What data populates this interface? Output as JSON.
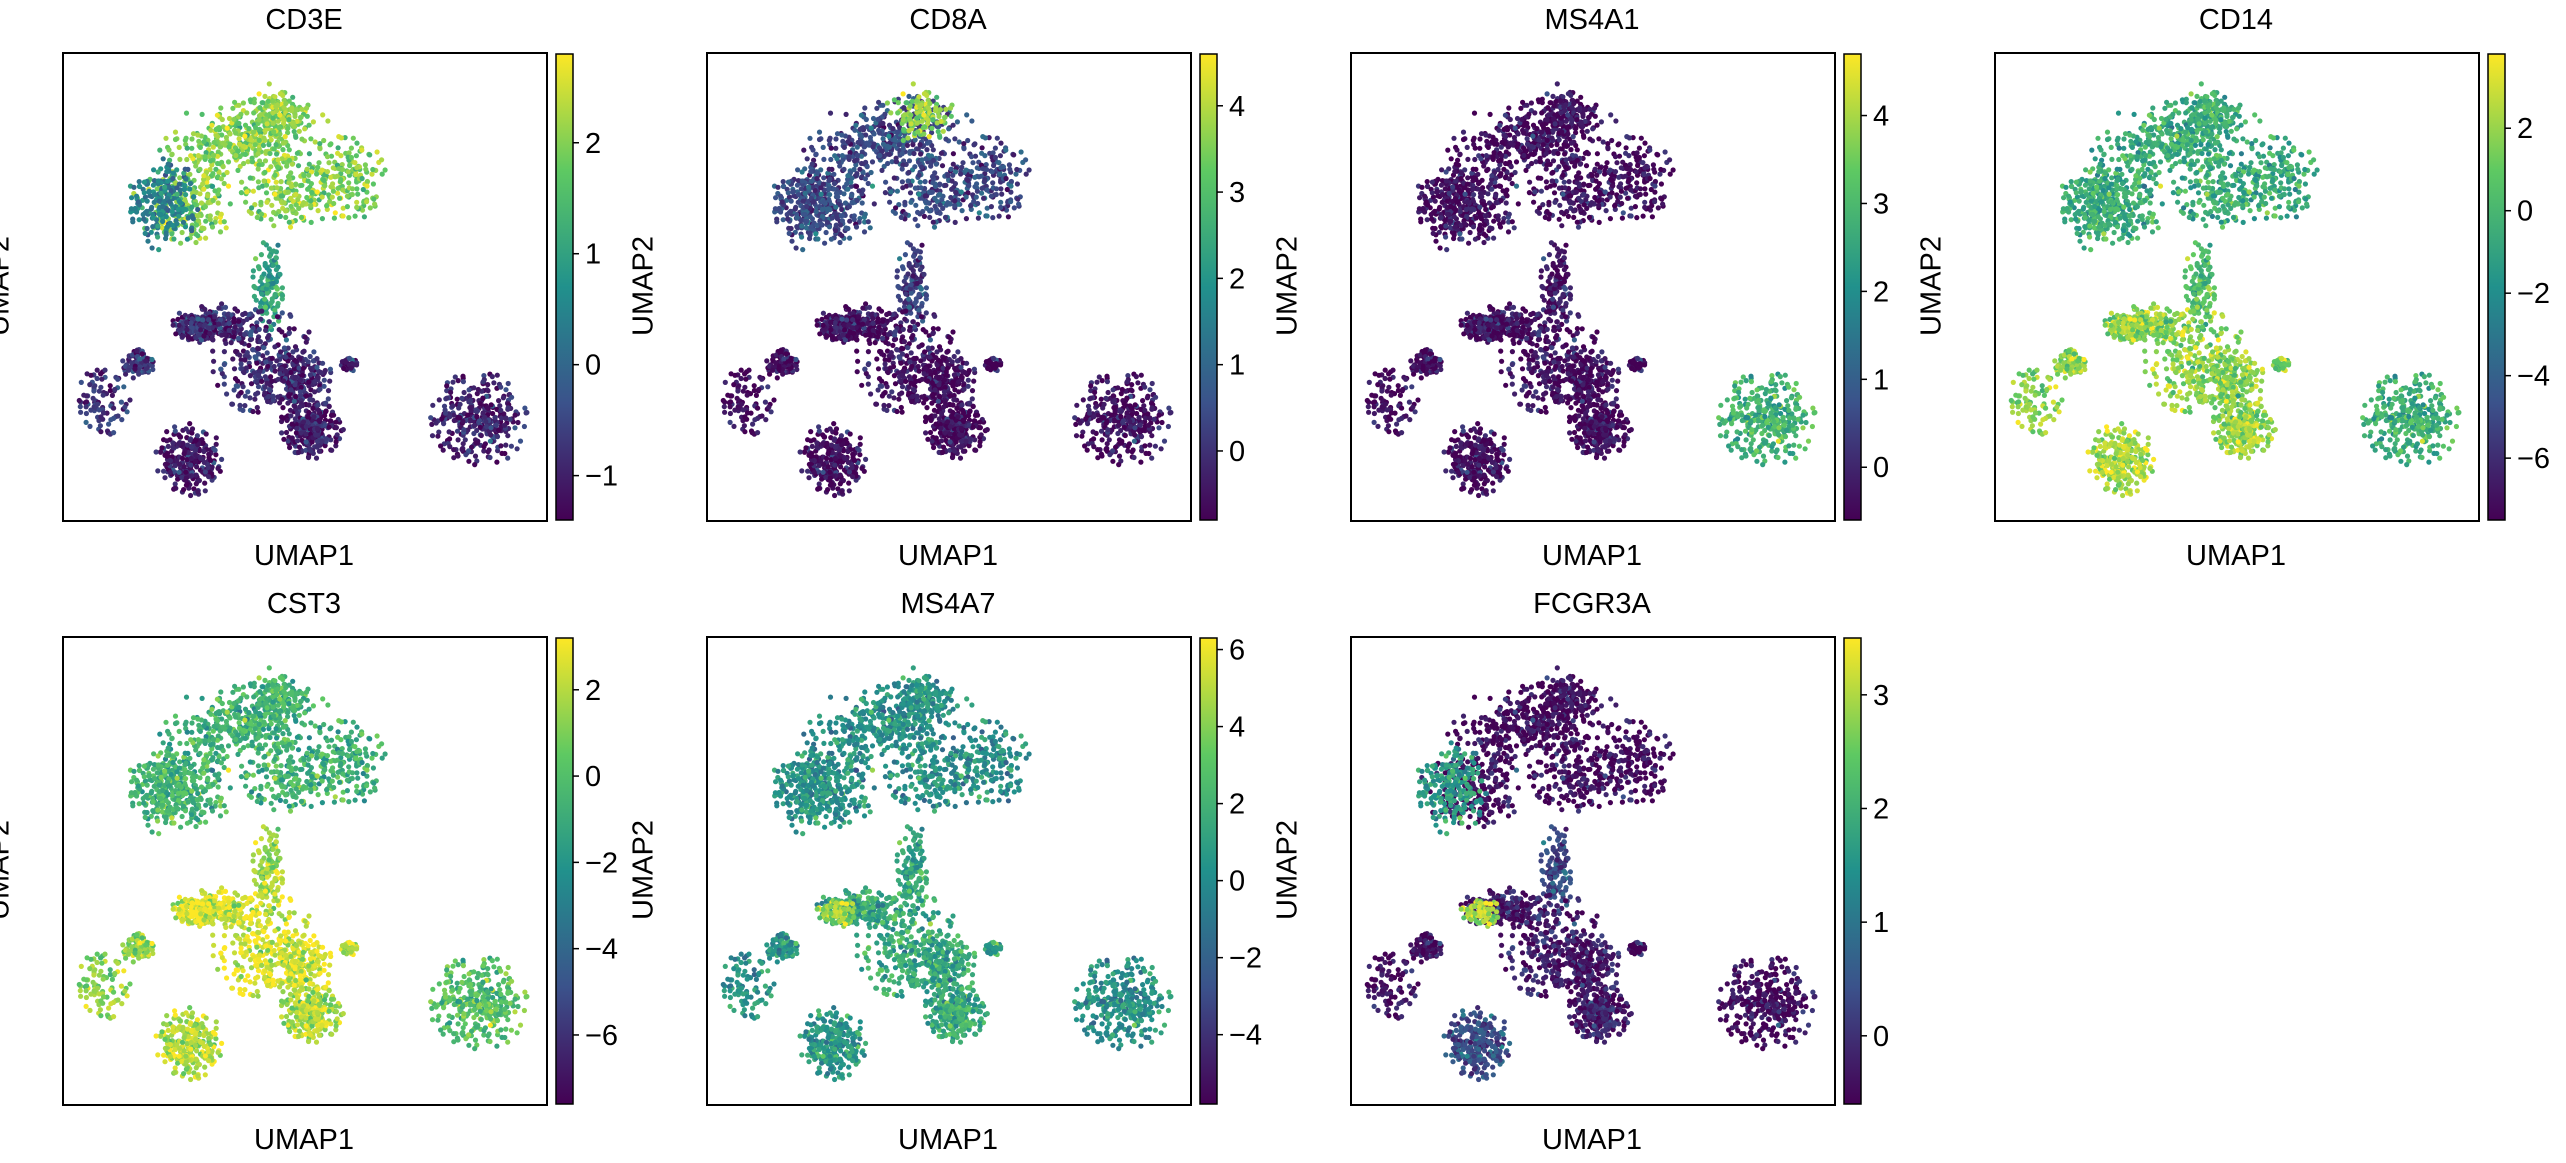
{
  "figure": {
    "colormap": "viridis",
    "colors": [
      "#440154",
      "#3b528b",
      "#21918c",
      "#5ec962",
      "#fde725"
    ]
  },
  "chart_data": [
    {
      "type": "scatter",
      "title": "CD3E",
      "xlabel": "UMAP1",
      "ylabel": "UMAP2",
      "colorbar": {
        "min": -1.4,
        "max": 2.8,
        "ticks": [
          -1,
          0,
          1,
          2
        ]
      },
      "cluster_means": {
        "tcell_top": 2.0,
        "tcell_left": 0.4,
        "bridge": 1.0,
        "mono_center": -0.9,
        "left_small": -0.7,
        "bottom_left": -1.1,
        "bottom_mid": -1.0,
        "b_cells": -1.0,
        "dots": -0.9
      }
    },
    {
      "type": "scatter",
      "title": "CD8A",
      "xlabel": "UMAP1",
      "ylabel": "UMAP2",
      "colorbar": {
        "min": -0.8,
        "max": 4.6,
        "ticks": [
          0,
          1,
          2,
          3,
          4
        ]
      },
      "cluster_means": {
        "tcell_top": 0.4,
        "tcell_top_cd8": 3.6,
        "tcell_left": 0.4,
        "bridge": 0.2,
        "mono_center": -0.6,
        "left_small": -0.6,
        "bottom_left": -0.6,
        "bottom_mid": -0.6,
        "b_cells": -0.6,
        "dots": -0.6
      }
    },
    {
      "type": "scatter",
      "title": "MS4A1",
      "xlabel": "UMAP1",
      "ylabel": "UMAP2",
      "colorbar": {
        "min": -0.6,
        "max": 4.7,
        "ticks": [
          0,
          1,
          2,
          3,
          4
        ]
      },
      "cluster_means": {
        "tcell_top": -0.4,
        "tcell_left": -0.4,
        "bridge": -0.3,
        "mono_center": -0.4,
        "left_small": -0.4,
        "bottom_left": -0.4,
        "bottom_mid": -0.4,
        "b_cells": 2.8,
        "dots": -0.4
      }
    },
    {
      "type": "scatter",
      "title": "CD14",
      "xlabel": "UMAP1",
      "ylabel": "UMAP2",
      "colorbar": {
        "min": -7.5,
        "max": 3.8,
        "ticks": [
          -6,
          -4,
          -2,
          0,
          2
        ]
      },
      "cluster_means": {
        "tcell_top": -0.5,
        "tcell_left": -0.6,
        "bridge": 0.3,
        "mono_center": 1.8,
        "left_small": 1.9,
        "bottom_left": 2.4,
        "bottom_mid": 2.2,
        "b_cells": -0.4,
        "dots": 1.5
      }
    },
    {
      "type": "scatter",
      "title": "CST3",
      "xlabel": "UMAP1",
      "ylabel": "UMAP2",
      "colorbar": {
        "min": -7.6,
        "max": 3.2,
        "ticks": [
          -6,
          -4,
          -2,
          0,
          2
        ]
      },
      "cluster_means": {
        "tcell_top": -0.6,
        "tcell_left": -0.6,
        "bridge": 1.6,
        "mono_center": 2.6,
        "left_small": 1.4,
        "bottom_left": 2.0,
        "bottom_mid": 2.0,
        "b_cells": 0.0,
        "dots": 2.4
      }
    },
    {
      "type": "scatter",
      "title": "MS4A7",
      "xlabel": "UMAP1",
      "ylabel": "UMAP2",
      "colorbar": {
        "min": -5.8,
        "max": 6.3,
        "ticks": [
          -4,
          -2,
          0,
          2,
          4,
          6
        ]
      },
      "cluster_means": {
        "tcell_top": 0.3,
        "tcell_left": 0.3,
        "bridge": 1.2,
        "mono_center": 1.5,
        "mono_left_patch": 4.2,
        "left_small": 0.5,
        "bottom_left": 0.6,
        "bottom_mid": 1.8,
        "b_cells": 0.2,
        "dots": 1.2
      }
    },
    {
      "type": "scatter",
      "title": "FCGR3A",
      "xlabel": "UMAP1",
      "ylabel": "UMAP2",
      "colorbar": {
        "min": -0.6,
        "max": 3.5,
        "ticks": [
          0,
          1,
          2,
          3
        ]
      },
      "cluster_means": {
        "tcell_top": -0.5,
        "tcell_left": 1.6,
        "bridge": 0.3,
        "mono_center": -0.3,
        "mono_left_patch": 2.9,
        "left_small": -0.4,
        "bottom_left": 0.4,
        "bottom_mid": -0.2,
        "b_cells": -0.5,
        "dots": -0.4
      }
    }
  ]
}
